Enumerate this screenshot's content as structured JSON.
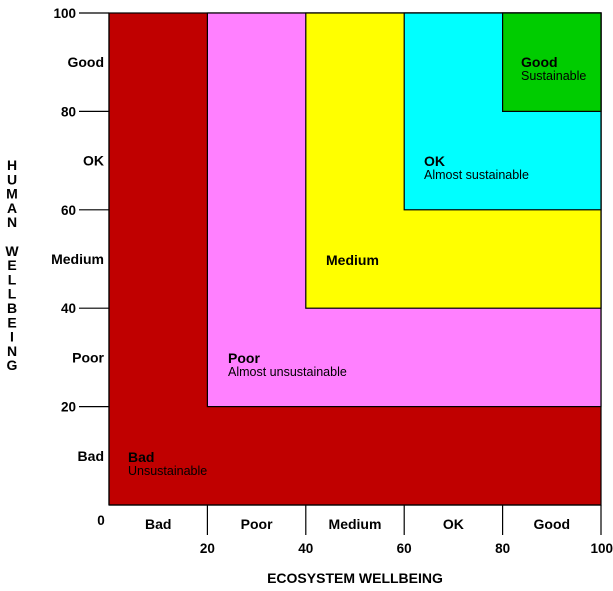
{
  "chart_data": {
    "type": "heatmap",
    "xlabel": "ECOSYSTEM WELLBEING",
    "ylabel": "HUMAN WELLBEING",
    "xlim": [
      0,
      100
    ],
    "ylim": [
      0,
      100
    ],
    "x_ticks": [
      0,
      20,
      40,
      60,
      80,
      100
    ],
    "y_ticks": [
      0,
      20,
      40,
      60,
      80,
      100
    ],
    "x_bands": [
      "Bad",
      "Poor",
      "Medium",
      "OK",
      "Good"
    ],
    "y_bands": [
      "Bad",
      "Poor",
      "Medium",
      "OK",
      "Good"
    ],
    "zones": [
      {
        "label": "Bad",
        "sublabel": "Unsustainable",
        "min": 0,
        "color": "#c00000"
      },
      {
        "label": "Poor",
        "sublabel": "Almost unsustainable",
        "min": 20,
        "color": "#ff80ff"
      },
      {
        "label": "Medium",
        "sublabel": "",
        "min": 40,
        "color": "#ffff00"
      },
      {
        "label": "OK",
        "sublabel": "Almost sustainable",
        "min": 60,
        "color": "#00ffff"
      },
      {
        "label": "Good",
        "sublabel": "Sustainable",
        "min": 80,
        "color": "#00cc00"
      }
    ]
  }
}
